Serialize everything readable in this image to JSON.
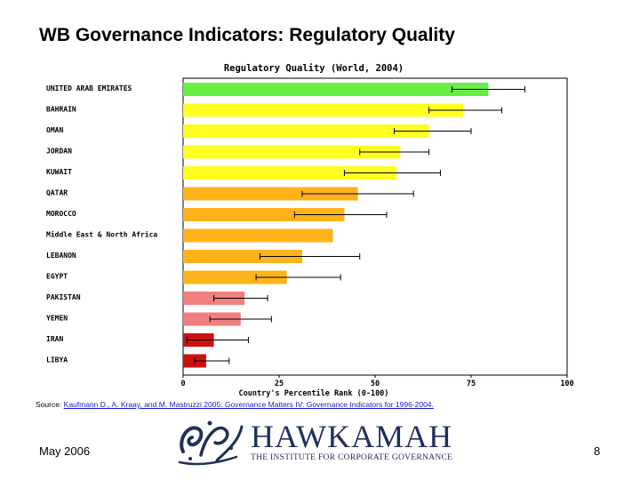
{
  "slide": {
    "title": "WB Governance Indicators: Regulatory Quality",
    "source_prefix": "Source: ",
    "source_link": "Kaufmann D., A. Kraay, and M. Mastruzzi 2005: Governance Matters IV: Governance Indicators for 1996-2004.",
    "date": "May 2006",
    "page": "8"
  },
  "logo": {
    "name": "HAWKAMAH",
    "tagline": "THE INSTITUTE FOR CORPORATE GOVERNANCE",
    "color": "#20305a"
  },
  "chart_data": {
    "type": "bar",
    "orientation": "horizontal",
    "title": "Regulatory Quality (World, 2004)",
    "xlabel": "Country's Percentile Rank (0-100)",
    "xlim": [
      0,
      100
    ],
    "xticks": [
      "0",
      "25",
      "50",
      "75",
      "100"
    ],
    "grid": false,
    "categories": [
      "UNITED ARAB EMIRATES",
      "BAHRAIN",
      "OMAN",
      "JORDAN",
      "KUWAIT",
      "QATAR",
      "MOROCCO",
      "Middle East & North Africa",
      "LEBANON",
      "EGYPT",
      "PAKISTAN",
      "YEMEN",
      "IRAN",
      "LIBYA"
    ],
    "values": [
      79.5,
      73,
      64,
      56.5,
      55.5,
      45.5,
      42,
      39,
      31,
      27,
      16,
      15,
      8,
      6
    ],
    "error_low": [
      70,
      64,
      55,
      46,
      42,
      31,
      29,
      null,
      20,
      19,
      8,
      7,
      1,
      3
    ],
    "error_high": [
      89,
      83,
      75,
      64,
      67,
      60,
      53,
      null,
      46,
      41,
      22,
      23,
      17,
      12
    ],
    "colors": [
      "#66ee44",
      "#ffff22",
      "#ffff22",
      "#ffff22",
      "#ffff22",
      "#ffb31a",
      "#ffb31a",
      "#ffb31a",
      "#ffb31a",
      "#ffb31a",
      "#f08080",
      "#f08080",
      "#cc1111",
      "#cc1111"
    ]
  }
}
